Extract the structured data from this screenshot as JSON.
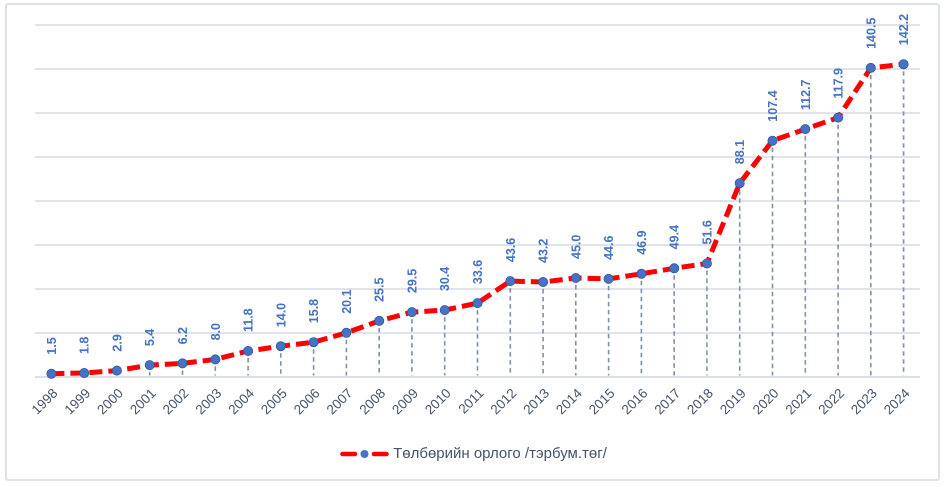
{
  "chart_data": {
    "type": "line",
    "categories": [
      "1998",
      "1999",
      "2000",
      "2001",
      "2002",
      "2003",
      "2004",
      "2005",
      "2006",
      "2007",
      "2008",
      "2009",
      "2010",
      "2011",
      "2012",
      "2013",
      "2014",
      "2015",
      "2016",
      "2017",
      "2018",
      "2019",
      "2020",
      "2021",
      "2022",
      "2023",
      "2024"
    ],
    "series": [
      {
        "name": "Төлбөрийн орлого /тэрбум.төг/",
        "values": [
          1.5,
          1.8,
          2.9,
          5.4,
          6.2,
          8.0,
          11.8,
          14.0,
          15.8,
          20.1,
          25.5,
          29.5,
          30.4,
          33.6,
          43.6,
          43.2,
          45.0,
          44.6,
          46.9,
          49.4,
          51.6,
          88.1,
          107.4,
          112.7,
          117.9,
          140.5,
          142.2
        ]
      }
    ],
    "title": "",
    "xlabel": "",
    "ylabel": "",
    "ylim": [
      0,
      160
    ],
    "gridline_step": 20,
    "grid": "horizontal",
    "y_axis_labels_visible": false,
    "data_label_format": "0.0",
    "data_label_rotation": -90,
    "x_label_rotation": -45,
    "legend_position": "bottom",
    "line_style": "dashed",
    "marker": "circle"
  },
  "legend": {
    "label": "Төлбөрийн орлого /тэрбум.төг/"
  },
  "colors": {
    "line": "#fe0000",
    "marker": "#4472c4",
    "marker_edge": "#35569e",
    "data_label": "#4472c4",
    "axis_label": "#44546a",
    "legend_text": "#44546a",
    "gridline": "#dbe0e7",
    "axis_line": "#d6dbe2",
    "drop_line": "#7e8fa9",
    "border": "#dce1e9",
    "background": "#ffffff"
  }
}
